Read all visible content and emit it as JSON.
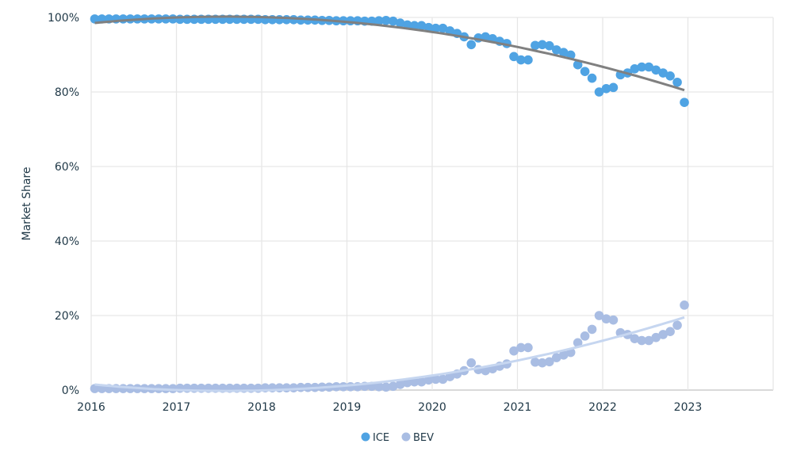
{
  "chart_data": {
    "type": "scatter",
    "title": "",
    "xlabel": "",
    "ylabel": "Market Share",
    "xlim": [
      2016,
      2024
    ],
    "ylim": [
      0,
      100
    ],
    "x_ticks": [
      "2016",
      "2017",
      "2018",
      "2019",
      "2020",
      "2021",
      "2022",
      "2023"
    ],
    "y_ticks": [
      "0%",
      "20%",
      "40%",
      "60%",
      "80%",
      "100%"
    ],
    "grid": true,
    "legend_position": "bottom",
    "x_start": "2016-01",
    "x_frequency": "monthly",
    "trendlines": true,
    "series": [
      {
        "name": "ICE",
        "color": "#4fa3e3",
        "trend_color": "#808080",
        "values": [
          99.6,
          99.6,
          99.6,
          99.6,
          99.6,
          99.6,
          99.6,
          99.6,
          99.6,
          99.6,
          99.6,
          99.6,
          99.5,
          99.5,
          99.5,
          99.5,
          99.5,
          99.5,
          99.5,
          99.5,
          99.5,
          99.5,
          99.5,
          99.5,
          99.4,
          99.4,
          99.4,
          99.4,
          99.4,
          99.3,
          99.3,
          99.3,
          99.2,
          99.2,
          99.1,
          99.1,
          99.1,
          99.1,
          99.0,
          99.0,
          99.1,
          99.2,
          99.0,
          98.5,
          98.0,
          97.8,
          97.8,
          97.3,
          97.1,
          97.1,
          96.4,
          95.7,
          94.8,
          92.7,
          94.5,
          94.8,
          94.3,
          93.6,
          93.0,
          89.5,
          88.6,
          88.6,
          92.5,
          92.7,
          92.4,
          91.3,
          90.6,
          89.9,
          87.3,
          85.5,
          83.7,
          80.0,
          80.9,
          81.2,
          84.6,
          85.1,
          86.2,
          86.7,
          86.7,
          85.9,
          85.1,
          84.3,
          82.6,
          77.2
        ]
      },
      {
        "name": "BEV",
        "color": "#a9bde3",
        "trend_color": "#c6d6f0",
        "values": [
          0.4,
          0.4,
          0.4,
          0.4,
          0.4,
          0.4,
          0.4,
          0.4,
          0.4,
          0.4,
          0.4,
          0.4,
          0.5,
          0.5,
          0.5,
          0.5,
          0.5,
          0.5,
          0.5,
          0.5,
          0.5,
          0.5,
          0.5,
          0.5,
          0.6,
          0.6,
          0.6,
          0.6,
          0.6,
          0.7,
          0.7,
          0.7,
          0.8,
          0.8,
          0.9,
          0.9,
          0.9,
          0.9,
          1.0,
          1.0,
          0.9,
          0.8,
          1.0,
          1.5,
          2.0,
          2.2,
          2.2,
          2.7,
          2.9,
          2.9,
          3.6,
          4.3,
          5.2,
          7.3,
          5.5,
          5.2,
          5.7,
          6.4,
          7.0,
          10.5,
          11.4,
          11.4,
          7.5,
          7.3,
          7.6,
          8.7,
          9.4,
          10.1,
          12.7,
          14.5,
          16.3,
          20.0,
          19.1,
          18.8,
          15.4,
          14.9,
          13.8,
          13.3,
          13.3,
          14.1,
          14.9,
          15.7,
          17.4,
          22.8
        ]
      }
    ]
  }
}
